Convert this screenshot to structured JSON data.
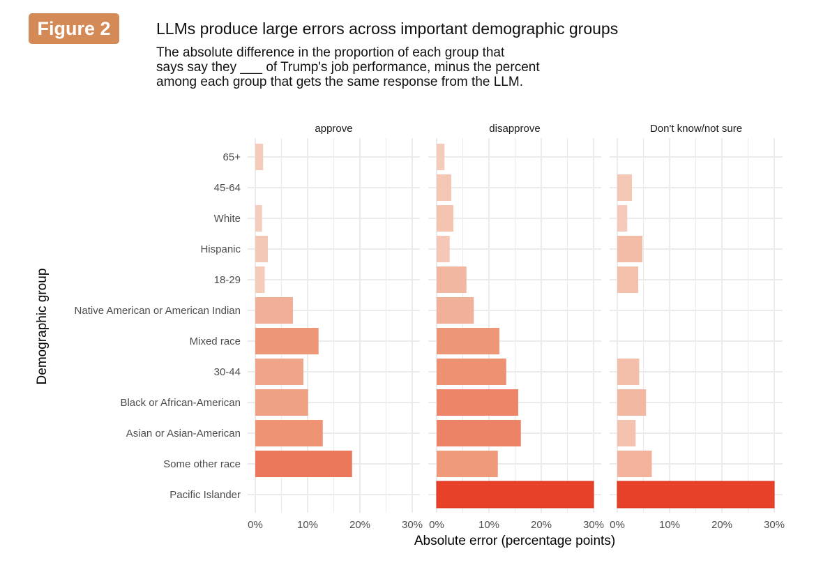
{
  "figure_label": "Figure 2",
  "title": "LLMs produce large errors across important demographic groups",
  "subtitle_lines": [
    "The absolute difference in the proportion of each group that",
    "says say they ___ of Trump's job performance, minus the percent",
    "among each group that gets the same response from the LLM."
  ],
  "colors": {
    "badge": "#d48a57",
    "bar_low": "#f6d4c6",
    "bar_mid": "#ee9778",
    "bar_high": "#e8412a",
    "grid": "#ebebeb"
  },
  "chart_data": {
    "type": "bar",
    "orientation": "horizontal",
    "faceted": true,
    "xlabel": "Absolute error (percentage points)",
    "ylabel": "Demographic group",
    "xlim": [
      0,
      30
    ],
    "x_ticks": [
      "0%",
      "10%",
      "20%",
      "30%"
    ],
    "x_tick_values": [
      0,
      10,
      20,
      30
    ],
    "grid": true,
    "fill": "gradient by value (light peach to red)",
    "categories": [
      "65+",
      "45-64",
      "White",
      "Hispanic",
      "18-29",
      "Native American or American Indian",
      "Mixed race",
      "30-44",
      "Black or African-American",
      "Asian or Asian-American",
      "Some other race",
      "Pacific Islander"
    ],
    "series": [
      {
        "name": "approve",
        "values": [
          1.5,
          0,
          1.3,
          2.4,
          1.8,
          7.2,
          12.1,
          9.2,
          10.1,
          12.9,
          18.5,
          0
        ]
      },
      {
        "name": "disapprove",
        "values": [
          1.5,
          2.8,
          3.2,
          2.5,
          5.7,
          7.1,
          12.0,
          13.3,
          15.6,
          16.1,
          11.7,
          30
        ]
      },
      {
        "name": "Don't know/not sure",
        "values": [
          0,
          2.8,
          1.9,
          4.8,
          4.0,
          0,
          0,
          4.2,
          5.5,
          3.5,
          6.6,
          30
        ]
      }
    ]
  }
}
